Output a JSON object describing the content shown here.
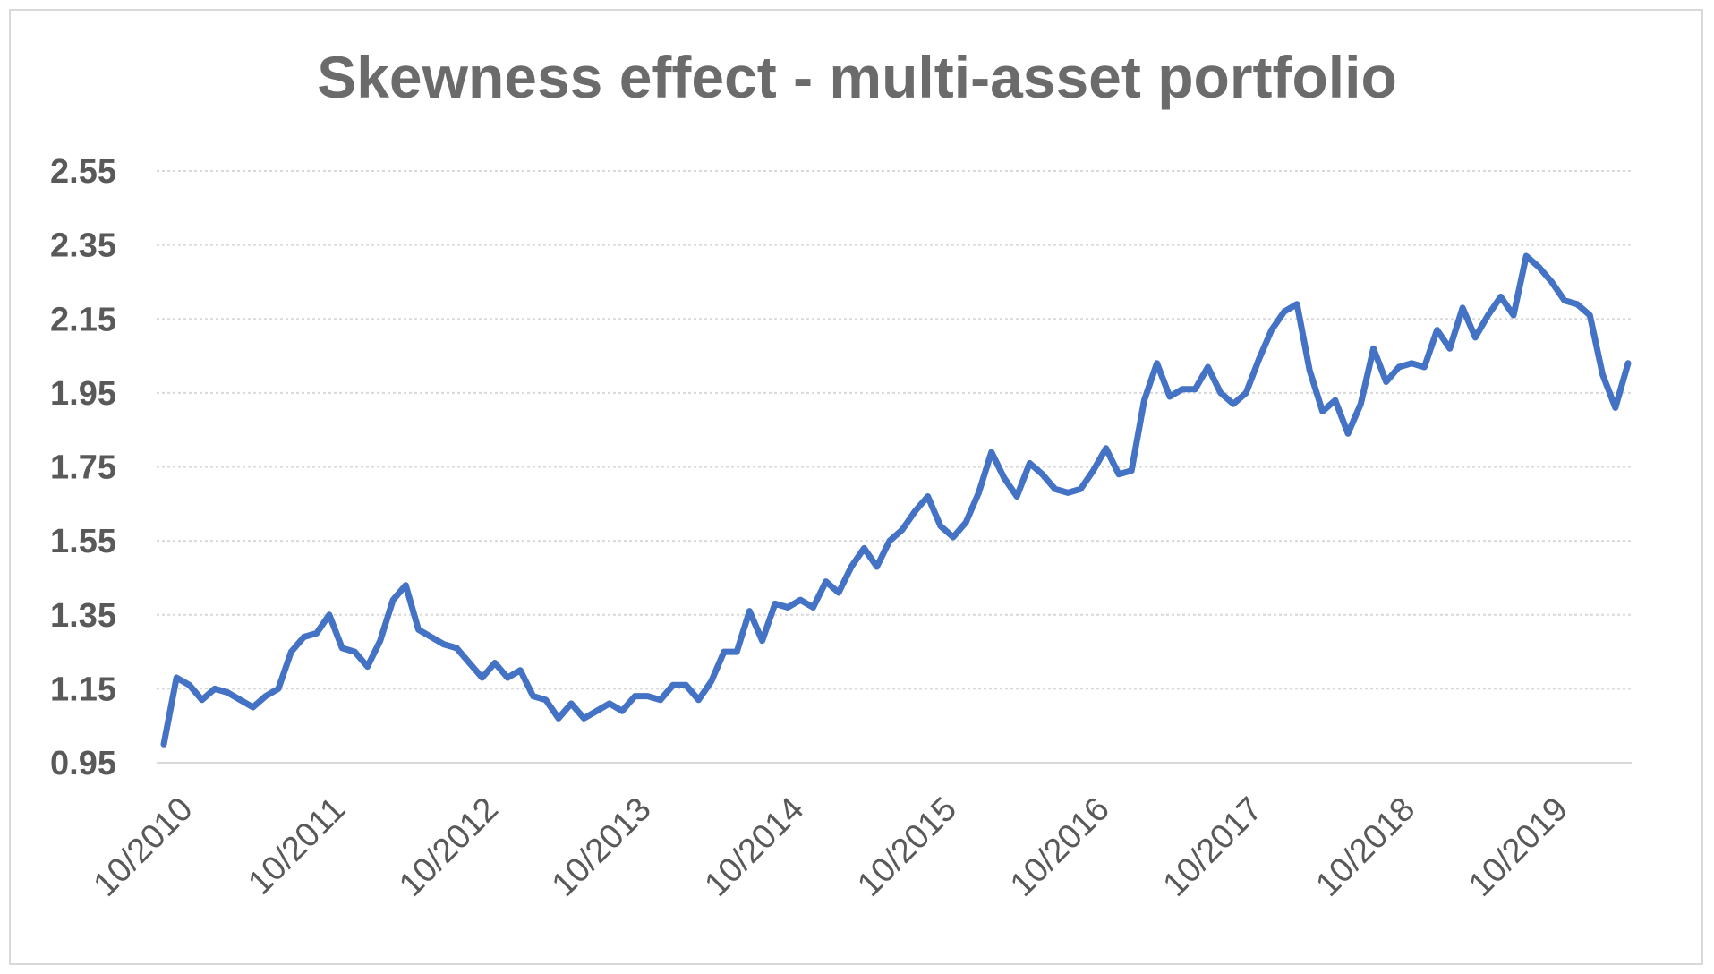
{
  "chart_data": {
    "type": "line",
    "title": "Skewness effect - multi-asset portfolio",
    "xlabel": "",
    "ylabel": "",
    "ylim": [
      0.95,
      2.55
    ],
    "y_ticks": [
      "0.95",
      "1.15",
      "1.35",
      "1.55",
      "1.75",
      "1.95",
      "2.15",
      "2.35",
      "2.55"
    ],
    "x_ticks": [
      "10/2010",
      "10/2011",
      "10/2012",
      "10/2013",
      "10/2014",
      "10/2015",
      "10/2016",
      "10/2017",
      "10/2018",
      "10/2019"
    ],
    "x_start": "10/2010",
    "x_frequency": "monthly",
    "grid": true,
    "series_color": "#4472c4",
    "grid_color": "#d9d9d9",
    "series": [
      {
        "name": "",
        "values": [
          1.0,
          1.18,
          1.16,
          1.12,
          1.15,
          1.14,
          1.12,
          1.1,
          1.13,
          1.15,
          1.25,
          1.29,
          1.3,
          1.35,
          1.26,
          1.25,
          1.21,
          1.28,
          1.39,
          1.43,
          1.31,
          1.29,
          1.27,
          1.26,
          1.22,
          1.18,
          1.22,
          1.18,
          1.2,
          1.13,
          1.12,
          1.07,
          1.11,
          1.07,
          1.09,
          1.11,
          1.09,
          1.13,
          1.13,
          1.12,
          1.16,
          1.16,
          1.12,
          1.17,
          1.25,
          1.25,
          1.36,
          1.28,
          1.38,
          1.37,
          1.39,
          1.37,
          1.44,
          1.41,
          1.48,
          1.53,
          1.48,
          1.55,
          1.58,
          1.63,
          1.67,
          1.59,
          1.56,
          1.6,
          1.68,
          1.79,
          1.72,
          1.67,
          1.76,
          1.73,
          1.69,
          1.68,
          1.69,
          1.74,
          1.8,
          1.73,
          1.74,
          1.93,
          2.03,
          1.94,
          1.96,
          1.96,
          2.02,
          1.95,
          1.92,
          1.95,
          2.04,
          2.12,
          2.17,
          2.19,
          2.01,
          1.9,
          1.93,
          1.84,
          1.92,
          2.07,
          1.98,
          2.02,
          2.03,
          2.02,
          2.12,
          2.07,
          2.18,
          2.1,
          2.16,
          2.21,
          2.16,
          2.32,
          2.29,
          2.25,
          2.2,
          2.19,
          2.16,
          2.0,
          1.91,
          2.03
        ]
      }
    ]
  }
}
